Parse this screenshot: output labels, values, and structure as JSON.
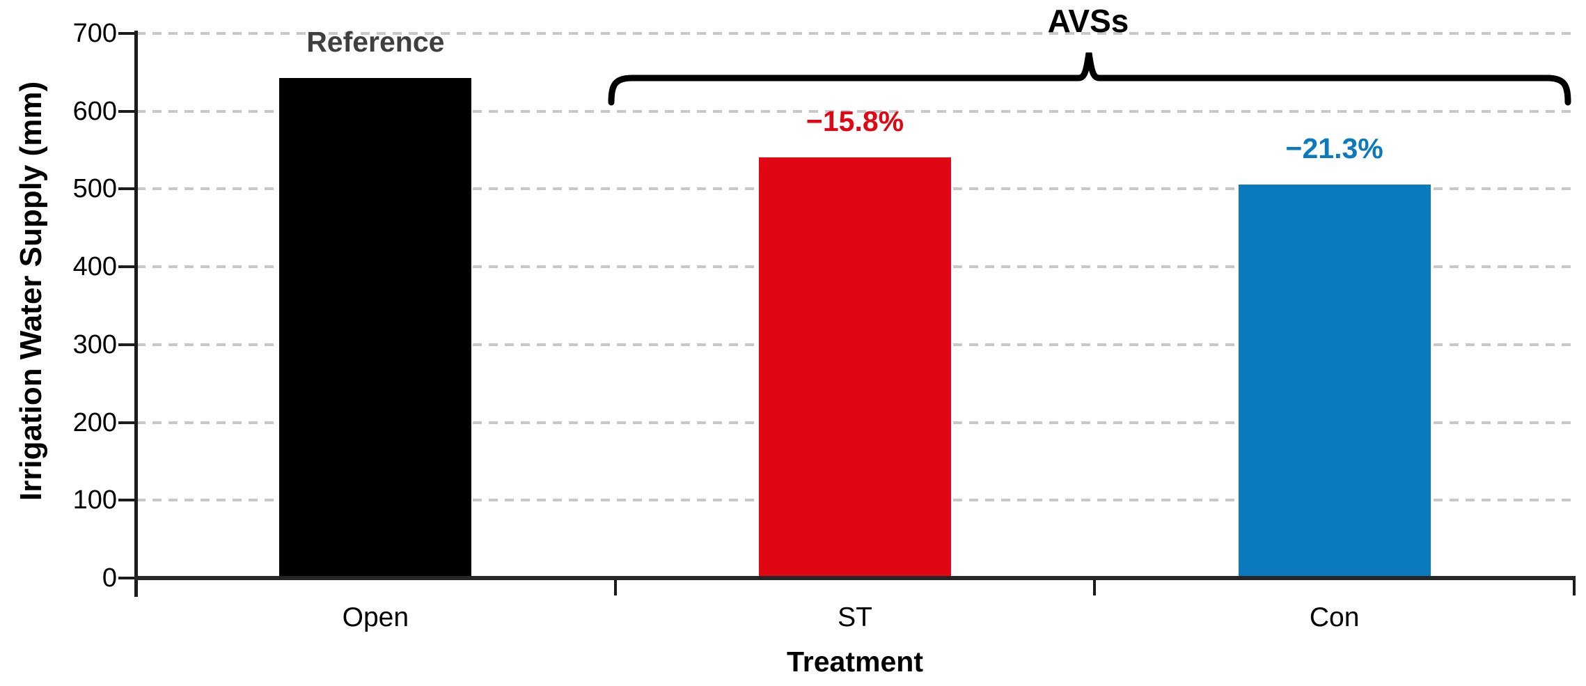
{
  "chart_data": {
    "type": "bar",
    "title": "",
    "xlabel": "Treatment",
    "ylabel": "Irrigation Water Supply (mm)",
    "ylim": [
      0,
      700
    ],
    "yticks": [
      0,
      100,
      200,
      300,
      400,
      500,
      600,
      700
    ],
    "grid": "dashed-horizontal",
    "legend": false,
    "categories": [
      "Open",
      "ST",
      "Con"
    ],
    "values": [
      643,
      541,
      506
    ],
    "bar_colors": [
      "#000000",
      "#e10613",
      "#0b79bd"
    ],
    "bar_annotations": [
      {
        "text": "Reference",
        "color": "#3f3f3f"
      },
      {
        "text": "−15.8%",
        "color": "#e10613"
      },
      {
        "text": "−21.3%",
        "color": "#0b79bd"
      }
    ],
    "group_annotation": {
      "label": "AVSs",
      "applies_to": [
        "ST",
        "Con"
      ]
    }
  },
  "colors": {
    "axis": "#1c1c1c",
    "gridline": "#c8c8c8",
    "background": "#ffffff",
    "reference_label": "#3f3f3f",
    "st_bar": "#e10613",
    "con_bar": "#0b79bd",
    "open_bar": "#000000"
  }
}
